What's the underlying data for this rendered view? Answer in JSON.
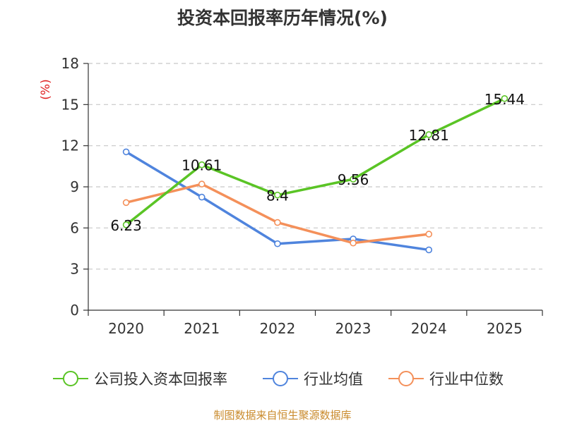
{
  "chart_data": {
    "type": "line",
    "title": "投资本回报率历年情况(%)",
    "ylabel": "(%)",
    "xlabel": "",
    "categories": [
      "2020",
      "2021",
      "2022",
      "2023",
      "2024",
      "2025"
    ],
    "ylim": [
      0,
      18
    ],
    "yticks": [
      0,
      3,
      6,
      9,
      12,
      15,
      18
    ],
    "grid": true,
    "legend_position": "bottom",
    "series": [
      {
        "name": "公司投入资本回报率",
        "color": "#5ac425",
        "values": [
          6.23,
          10.61,
          8.4,
          9.56,
          12.81,
          15.44
        ],
        "labels": [
          "6.23",
          "10.61",
          "8.4",
          "9.56",
          "12.81",
          "15.44"
        ]
      },
      {
        "name": "行业均值",
        "color": "#4f84dd",
        "values": [
          11.55,
          8.25,
          4.85,
          5.2,
          4.4,
          null
        ]
      },
      {
        "name": "行业中位数",
        "color": "#f4905a",
        "values": [
          7.85,
          9.2,
          6.4,
          4.9,
          5.55,
          null
        ]
      }
    ],
    "source": "制图数据来自恒生聚源数据库"
  }
}
